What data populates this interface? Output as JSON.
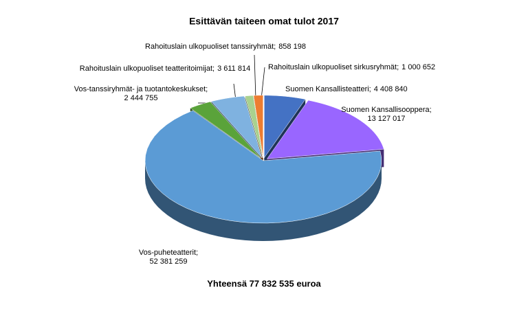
{
  "chart_data": {
    "type": "pie3d",
    "title": "Esittävän taiteen omat tulot 2017",
    "categories": [
      "Suomen Kansallisteatteri;",
      "Suomen Kansallisooppera;",
      "Vos-puheteatterit;",
      "Vos-tanssiryhmät- ja tuotantokeskukset;",
      "Rahoituslain ulkopuoliset teatteritoimijat;",
      "Rahoituslain ulkopuoliset tanssiryhmät;",
      "Rahoituslain ulkopuoliset sirkusryhmät;"
    ],
    "values": [
      4408840,
      13127017,
      52381259,
      2444755,
      3611814,
      858198,
      1000652
    ],
    "value_labels": [
      "4 408 840",
      "13 127 017",
      "52 381 259",
      "2 444 755",
      "3 611 814",
      "858 198",
      "1 000 652"
    ],
    "colors": [
      "#4472c4",
      "#9966ff",
      "#5b9bd5",
      "#5aa33a",
      "#7fb2e0",
      "#a9d18e",
      "#ed7d31"
    ],
    "note": "Yhteensä 77 832 535 euroa"
  }
}
